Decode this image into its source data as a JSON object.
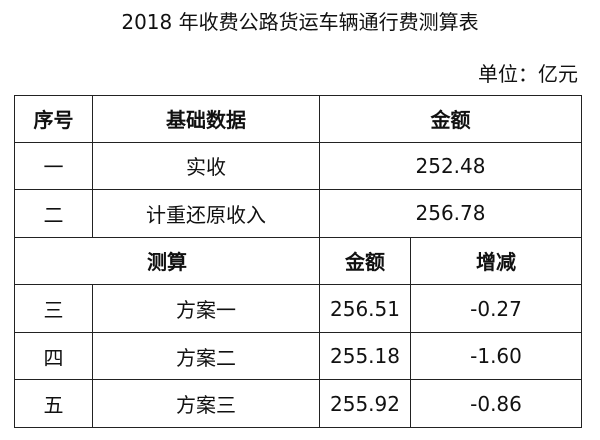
{
  "title": "2018 年收费公路货运车辆通行费测算表",
  "unit": "单位：亿元",
  "table": {
    "header": [
      "序号",
      "基础数据",
      "金额"
    ],
    "rows": [
      [
        "一",
        "实收",
        "252.48"
      ],
      [
        "二",
        "计重还原收入",
        "256.78"
      ]
    ],
    "subheader": [
      "测算",
      "金额",
      "增减"
    ],
    "subrows": [
      [
        "三",
        "方案一",
        "256.51",
        "-0.27"
      ],
      [
        "四",
        "方案二",
        "255.18",
        "-1.60"
      ],
      [
        "五",
        "方案三",
        "255.92",
        "-0.86"
      ]
    ]
  }
}
